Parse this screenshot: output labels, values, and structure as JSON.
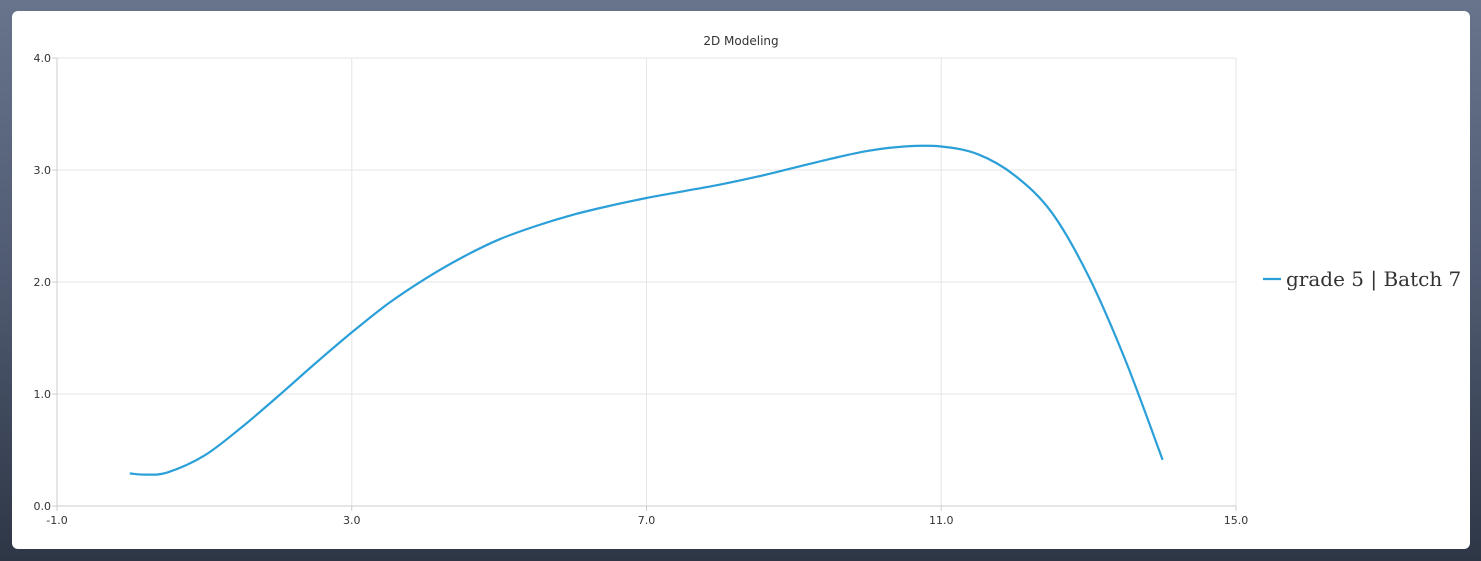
{
  "chart_data": {
    "type": "line",
    "title": "2D Modeling",
    "xlabel": "",
    "ylabel": "",
    "xlim": [
      -1.0,
      15.0
    ],
    "ylim": [
      0.0,
      4.0
    ],
    "x_ticks": [
      "-1.0",
      "3.0",
      "7.0",
      "11.0",
      "15.0"
    ],
    "y_ticks": [
      "0.0",
      "1.0",
      "2.0",
      "3.0",
      "4.0"
    ],
    "grid": true,
    "legend_position": "right",
    "series": [
      {
        "name": "grade 5 | Batch 7",
        "color": "#2a9fd8",
        "x": [
          0.0,
          0.2,
          0.5,
          1.0,
          1.5,
          2.0,
          2.5,
          3.0,
          3.5,
          4.0,
          4.5,
          5.0,
          5.5,
          6.0,
          6.5,
          7.0,
          7.5,
          8.0,
          8.5,
          9.0,
          9.5,
          10.0,
          10.5,
          11.0,
          11.5,
          12.0,
          12.5,
          13.0,
          13.5,
          14.0
        ],
        "y": [
          0.29,
          0.28,
          0.3,
          0.45,
          0.7,
          0.98,
          1.27,
          1.55,
          1.81,
          2.03,
          2.22,
          2.38,
          2.5,
          2.6,
          2.68,
          2.75,
          2.81,
          2.87,
          2.94,
          3.02,
          3.1,
          3.17,
          3.21,
          3.21,
          3.14,
          2.95,
          2.62,
          2.05,
          1.3,
          0.42
        ]
      }
    ]
  }
}
